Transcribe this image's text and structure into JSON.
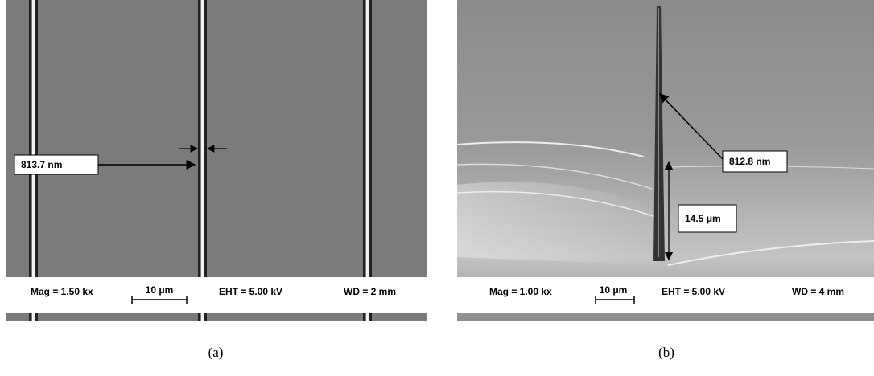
{
  "panels": [
    {
      "caption": "(a)",
      "annotations": [
        "813.7 nm"
      ],
      "info": {
        "mag": "Mag = 1.50 kx",
        "scale": "10 μm",
        "eht": "EHT = 5.00 kV",
        "wd": "WD = 2 mm"
      }
    },
    {
      "caption": "(b)",
      "annotations": [
        "812.8 nm",
        "14.5 μm"
      ],
      "info": {
        "mag": "Mag = 1.00 kx",
        "scale": "10 μm",
        "eht": "EHT = 5.00 kV",
        "wd": "WD = 4 mm"
      }
    }
  ]
}
